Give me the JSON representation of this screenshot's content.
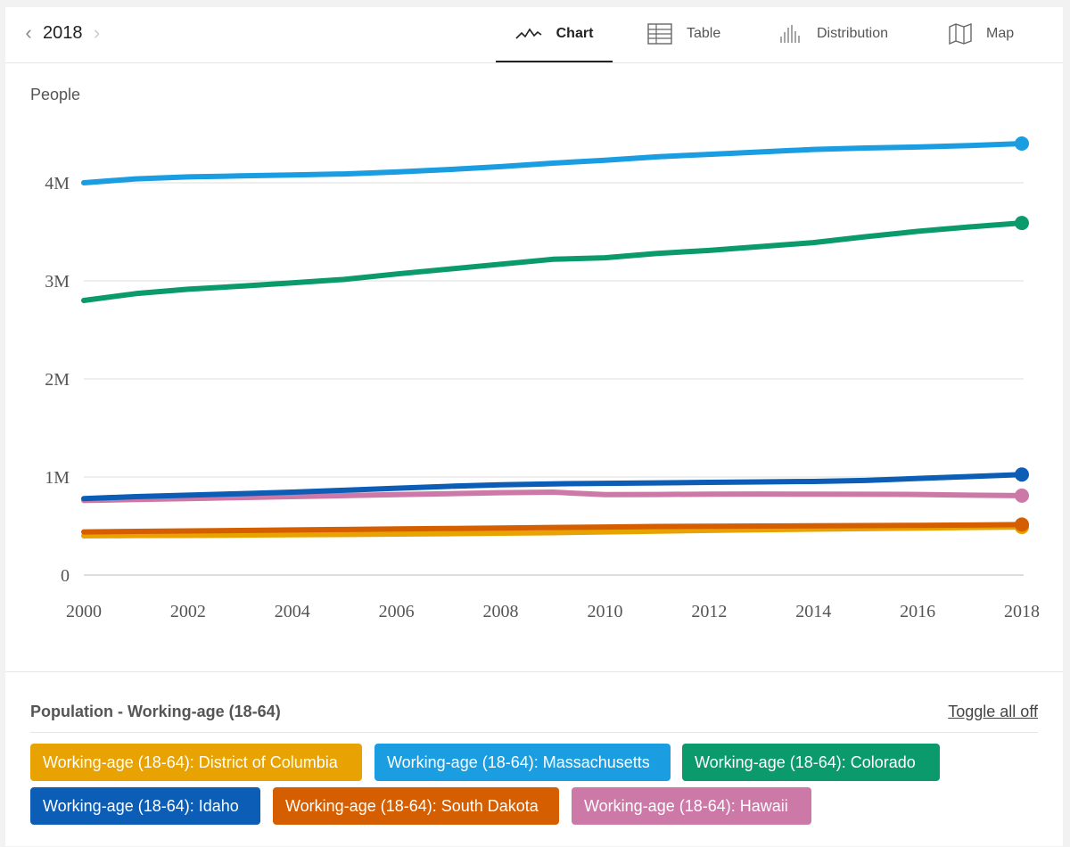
{
  "header": {
    "year": "2018",
    "prev_icon": "chevron-left-icon",
    "next_icon": "chevron-right-icon",
    "tabs": [
      {
        "label": "Chart",
        "icon": "line-chart-icon",
        "active": true
      },
      {
        "label": "Table",
        "icon": "table-icon",
        "active": false
      },
      {
        "label": "Distribution",
        "icon": "bar-distribution-icon",
        "active": false
      },
      {
        "label": "Map",
        "icon": "map-icon",
        "active": false
      }
    ]
  },
  "chart_data": {
    "type": "line",
    "ylabel": "People",
    "x": [
      2000,
      2001,
      2002,
      2003,
      2004,
      2005,
      2006,
      2007,
      2008,
      2009,
      2010,
      2011,
      2012,
      2013,
      2014,
      2015,
      2016,
      2017,
      2018
    ],
    "x_ticks": [
      "2000",
      "2002",
      "2004",
      "2006",
      "2008",
      "2010",
      "2012",
      "2014",
      "2016",
      "2018"
    ],
    "y_ticks": [
      {
        "value": 0,
        "label": "0"
      },
      {
        "value": 1000000,
        "label": "1M"
      },
      {
        "value": 2000000,
        "label": "2M"
      },
      {
        "value": 3000000,
        "label": "3M"
      },
      {
        "value": 4000000,
        "label": "4M"
      }
    ],
    "ylim": [
      0,
      4600000
    ],
    "grid": true,
    "series": [
      {
        "name": "Working-age (18-64): District of Columbia",
        "color": "#E8A202",
        "values": [
          400000,
          403000,
          405000,
          408000,
          411000,
          414000,
          418000,
          422000,
          427000,
          432000,
          440000,
          448000,
          456000,
          462000,
          468000,
          474000,
          480000,
          485000,
          490000
        ]
      },
      {
        "name": "Working-age (18-64): Massachusetts",
        "color": "#1B9DE2",
        "values": [
          4000000,
          4040000,
          4060000,
          4070000,
          4080000,
          4090000,
          4110000,
          4135000,
          4165000,
          4200000,
          4230000,
          4265000,
          4290000,
          4315000,
          4340000,
          4355000,
          4365000,
          4380000,
          4400000
        ]
      },
      {
        "name": "Working-age (18-64): Colorado",
        "color": "#0A9A6B",
        "values": [
          2800000,
          2870000,
          2915000,
          2945000,
          2980000,
          3015000,
          3070000,
          3120000,
          3170000,
          3220000,
          3235000,
          3280000,
          3310000,
          3350000,
          3390000,
          3450000,
          3505000,
          3550000,
          3590000
        ]
      },
      {
        "name": "Working-age (18-64): Idaho",
        "color": "#0B5DB5",
        "values": [
          780000,
          800000,
          815000,
          830000,
          845000,
          865000,
          885000,
          905000,
          920000,
          930000,
          935000,
          940000,
          945000,
          950000,
          955000,
          965000,
          985000,
          1005000,
          1025000
        ]
      },
      {
        "name": "Working-age (18-64): South Dakota",
        "color": "#D55E00",
        "values": [
          440000,
          445000,
          450000,
          455000,
          460000,
          465000,
          470000,
          475000,
          480000,
          485000,
          490000,
          495000,
          498000,
          500000,
          502000,
          504000,
          507000,
          510000,
          515000
        ]
      },
      {
        "name": "Working-age (18-64): Hawaii",
        "color": "#CC79A7",
        "values": [
          760000,
          770000,
          780000,
          790000,
          800000,
          810000,
          820000,
          830000,
          840000,
          845000,
          820000,
          822000,
          825000,
          826000,
          825000,
          824000,
          822000,
          815000,
          810000
        ]
      }
    ]
  },
  "legend": {
    "title": "Population - Working-age (18-64)",
    "toggle_label": "Toggle all off",
    "items": [
      {
        "label": "Working-age (18-64): District of Columbia",
        "color": "#E8A202"
      },
      {
        "label": "Working-age (18-64): Massachusetts",
        "color": "#1B9DE2"
      },
      {
        "label": "Working-age (18-64): Colorado",
        "color": "#0A9A6B"
      },
      {
        "label": "Working-age (18-64): Idaho",
        "color": "#0B5DB5"
      },
      {
        "label": "Working-age (18-64): South Dakota",
        "color": "#D55E00"
      },
      {
        "label": "Working-age (18-64): Hawaii",
        "color": "#CC79A7"
      }
    ]
  }
}
